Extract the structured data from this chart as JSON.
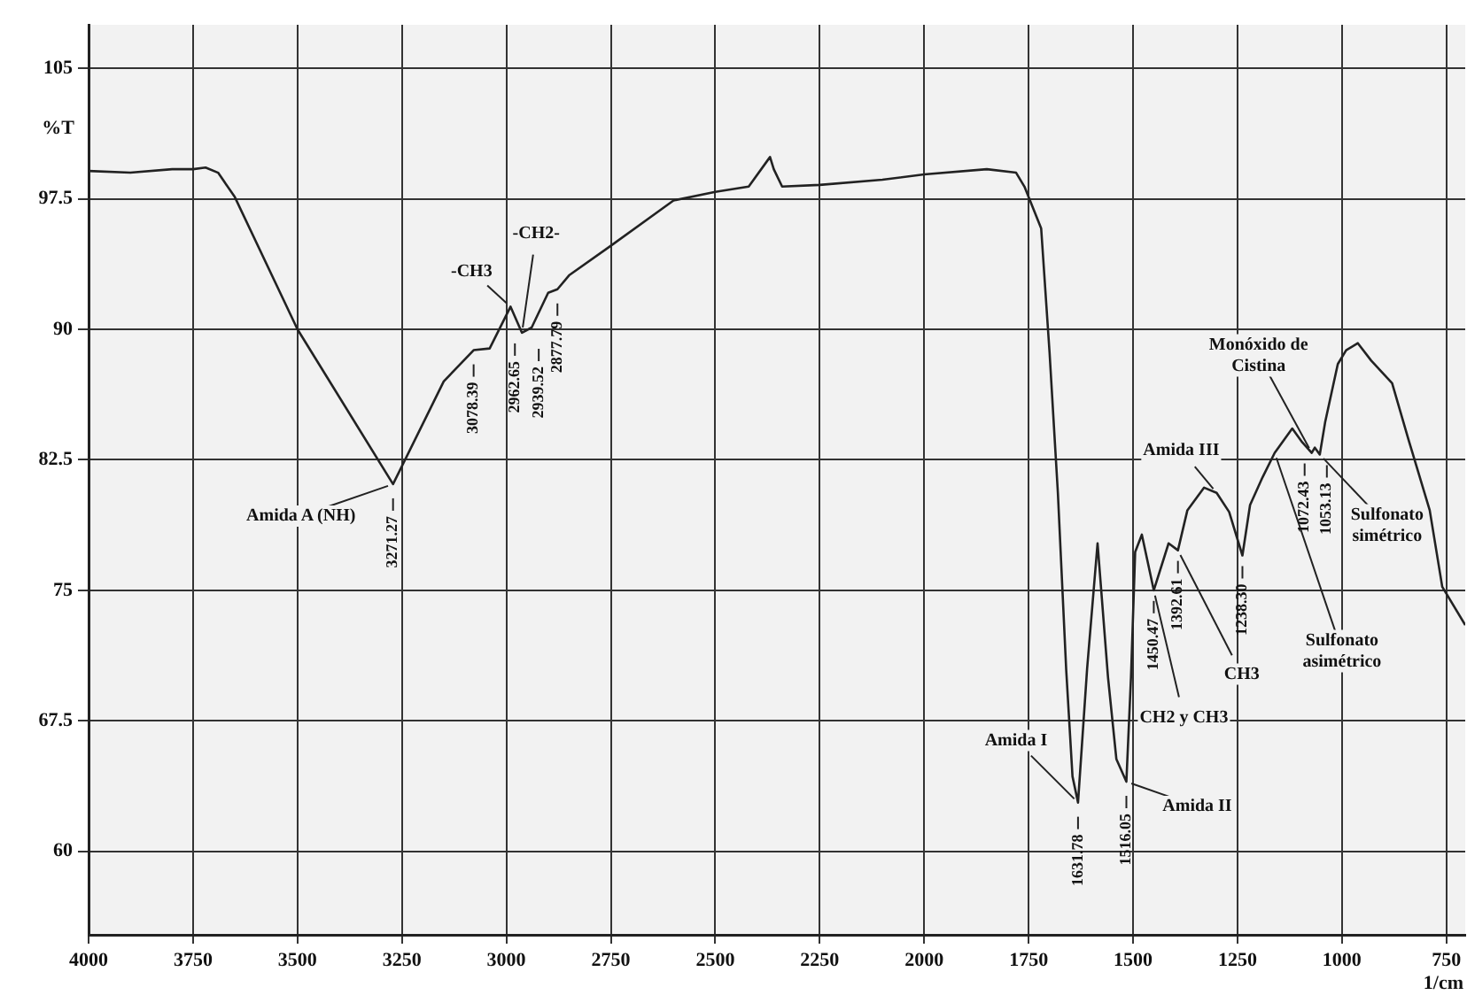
{
  "chart_data": {
    "type": "line",
    "xlabel": "1/cm",
    "ylabel": "%T",
    "xlim": [
      4000,
      705
    ],
    "xticks": [
      4000,
      3750,
      3500,
      3250,
      3000,
      2750,
      2500,
      2250,
      2000,
      1750,
      1500,
      1250,
      1000,
      750
    ],
    "ylim": [
      55.2,
      107.5
    ],
    "yticks": [
      60,
      67.5,
      75,
      82.5,
      90,
      97.5,
      105
    ],
    "grid": true,
    "legend": false,
    "marker": "none",
    "line_style": "solid",
    "series": [
      {
        "color": "#222222",
        "x": [
          4000,
          3900,
          3800,
          3750,
          3720,
          3690,
          3650,
          3500,
          3271.27,
          3150,
          3078.39,
          3040,
          2990,
          2962.65,
          2939.52,
          2900,
          2877.79,
          2850,
          2750,
          2600,
          2500,
          2420,
          2369,
          2360,
          2340,
          2250,
          2100,
          2000,
          1850,
          1780,
          1760,
          1720,
          1700,
          1680,
          1660,
          1645,
          1631.78,
          1610,
          1585,
          1560,
          1540,
          1516.05,
          1505,
          1495,
          1479,
          1450.47,
          1415,
          1392.61,
          1370,
          1330,
          1300,
          1270,
          1238.3,
          1220,
          1190,
          1161,
          1119,
          1095,
          1072.43,
          1065,
          1053.13,
          1040,
          1010,
          990,
          962,
          930,
          880,
          840,
          790,
          760,
          705
        ],
        "values": [
          99.1,
          99.0,
          99.2,
          99.2,
          99.3,
          99.0,
          97.6,
          90.0,
          81.1,
          87.0,
          88.8,
          88.9,
          91.3,
          89.8,
          90.1,
          92.1,
          92.3,
          93.1,
          94.8,
          97.4,
          97.9,
          98.2,
          99.9,
          99.2,
          98.2,
          98.3,
          98.6,
          98.9,
          99.2,
          99.0,
          98.2,
          95.8,
          88.7,
          80.6,
          70.4,
          64.3,
          62.8,
          70.5,
          77.7,
          70.0,
          65.3,
          64.0,
          70.0,
          77.2,
          78.2,
          75.0,
          77.7,
          77.3,
          79.6,
          80.9,
          80.6,
          79.5,
          77.0,
          79.9,
          81.5,
          82.9,
          84.3,
          83.5,
          82.9,
          83.2,
          82.8,
          84.7,
          88.0,
          88.8,
          89.2,
          88.2,
          86.9,
          83.6,
          79.6,
          75.2,
          73.0
        ]
      }
    ],
    "annotations": [
      {
        "text": "Amida A (NH)",
        "x": 3271.27,
        "y": 81.1
      },
      {
        "text": "-CH3",
        "x": 2990,
        "y": 91.3
      },
      {
        "text": "-CH2-",
        "x": 2962.65,
        "y": 89.8
      },
      {
        "text": "Amida I",
        "x": 1631.78,
        "y": 62.8
      },
      {
        "text": "Amida II",
        "x": 1516.05,
        "y": 64.0
      },
      {
        "text": "CH2 y CH3",
        "x": 1450.47,
        "y": 75.0
      },
      {
        "text": "CH3",
        "x": 1392.61,
        "y": 77.3
      },
      {
        "text": "Amida III",
        "x": 1300,
        "y": 80.6
      },
      {
        "text": "Monóxido de Cistina",
        "x": 1072.43,
        "y": 82.9
      },
      {
        "text": "Sulfonato simétrico",
        "x": 1053.13,
        "y": 82.8
      },
      {
        "text": "Sulfonato asimétrico",
        "x": 1161,
        "y": 82.9
      },
      {
        "text": "3271.27",
        "x": 3271.27,
        "y": 81.1
      },
      {
        "text": "3078.39",
        "x": 3078.39,
        "y": 88.8
      },
      {
        "text": "2962.65",
        "x": 2962.65,
        "y": 89.8
      },
      {
        "text": "2939.52",
        "x": 2939.52,
        "y": 90.1
      },
      {
        "text": "2877.79",
        "x": 2877.79,
        "y": 92.3
      },
      {
        "text": "1631.78",
        "x": 1631.78,
        "y": 62.8
      },
      {
        "text": "1516.05",
        "x": 1516.05,
        "y": 64.0
      },
      {
        "text": "1450.47",
        "x": 1450.47,
        "y": 75.0
      },
      {
        "text": "1392.61",
        "x": 1392.61,
        "y": 77.3
      },
      {
        "text": "1238.30",
        "x": 1238.3,
        "y": 77.0
      },
      {
        "text": "1072.43",
        "x": 1072.43,
        "y": 82.9
      },
      {
        "text": "1053.13",
        "x": 1053.13,
        "y": 82.8
      }
    ]
  }
}
